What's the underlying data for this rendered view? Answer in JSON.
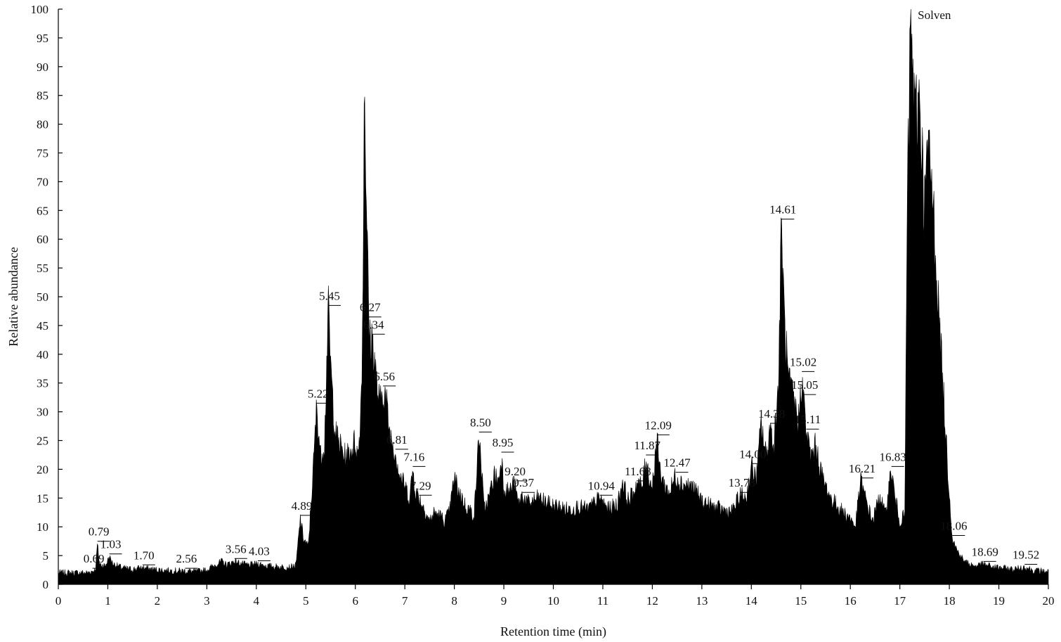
{
  "chart_data": {
    "type": "line",
    "title": "",
    "xlabel": "Retention time (min)",
    "ylabel": "Relative abundance",
    "xlim": [
      0,
      20
    ],
    "ylim": [
      0,
      100
    ],
    "x_ticks": [
      0,
      1,
      2,
      3,
      4,
      5,
      6,
      7,
      8,
      9,
      10,
      11,
      12,
      13,
      14,
      15,
      16,
      17,
      18,
      19,
      20
    ],
    "y_ticks": [
      0,
      5,
      10,
      15,
      20,
      25,
      30,
      35,
      40,
      45,
      50,
      55,
      60,
      65,
      70,
      75,
      80,
      85,
      90,
      95,
      100
    ],
    "grid": false,
    "legend": "none",
    "series_color": "#000000",
    "series": [
      {
        "points": [
          [
            0.0,
            2.0
          ],
          [
            0.3,
            2.0
          ],
          [
            0.6,
            2.0
          ],
          [
            0.69,
            2.3
          ],
          [
            0.75,
            2.5
          ],
          [
            0.79,
            7.0
          ],
          [
            0.83,
            3.5
          ],
          [
            0.95,
            3.2
          ],
          [
            1.03,
            4.8
          ],
          [
            1.1,
            3.6
          ],
          [
            1.3,
            2.8
          ],
          [
            1.5,
            2.6
          ],
          [
            1.7,
            2.9
          ],
          [
            1.9,
            2.6
          ],
          [
            2.2,
            2.4
          ],
          [
            2.56,
            2.3
          ],
          [
            2.8,
            2.2
          ],
          [
            3.0,
            2.5
          ],
          [
            3.2,
            3.5
          ],
          [
            3.3,
            4.0
          ],
          [
            3.4,
            3.4
          ],
          [
            3.56,
            4.0
          ],
          [
            3.7,
            3.6
          ],
          [
            3.85,
            3.3
          ],
          [
            4.03,
            3.6
          ],
          [
            4.2,
            3.2
          ],
          [
            4.5,
            3.0
          ],
          [
            4.7,
            3.0
          ],
          [
            4.8,
            3.3
          ],
          [
            4.89,
            11.5
          ],
          [
            4.95,
            8.0
          ],
          [
            5.05,
            6.5
          ],
          [
            5.15,
            20.0
          ],
          [
            5.22,
            31.0
          ],
          [
            5.3,
            22.0
          ],
          [
            5.38,
            25.0
          ],
          [
            5.45,
            48.0
          ],
          [
            5.52,
            35.0
          ],
          [
            5.6,
            26.0
          ],
          [
            5.7,
            24.0
          ],
          [
            5.8,
            22.0
          ],
          [
            5.9,
            23.0
          ],
          [
            6.0,
            25.0
          ],
          [
            6.05,
            22.0
          ],
          [
            6.1,
            28.0
          ],
          [
            6.15,
            45.0
          ],
          [
            6.18,
            89.0
          ],
          [
            6.22,
            70.0
          ],
          [
            6.27,
            46.0
          ],
          [
            6.3,
            42.0
          ],
          [
            6.34,
            43.0
          ],
          [
            6.4,
            38.0
          ],
          [
            6.45,
            33.0
          ],
          [
            6.5,
            31.0
          ],
          [
            6.56,
            34.0
          ],
          [
            6.62,
            32.0
          ],
          [
            6.7,
            26.0
          ],
          [
            6.81,
            23.0
          ],
          [
            6.9,
            19.0
          ],
          [
            7.0,
            17.0
          ],
          [
            7.1,
            15.0
          ],
          [
            7.16,
            20.0
          ],
          [
            7.22,
            16.0
          ],
          [
            7.29,
            15.0
          ],
          [
            7.4,
            13.0
          ],
          [
            7.5,
            11.0
          ],
          [
            7.6,
            12.5
          ],
          [
            7.7,
            12.0
          ],
          [
            7.8,
            11.0
          ],
          [
            7.9,
            12.5
          ],
          [
            8.0,
            18.5
          ],
          [
            8.1,
            16.0
          ],
          [
            8.2,
            14.0
          ],
          [
            8.3,
            13.0
          ],
          [
            8.4,
            12.0
          ],
          [
            8.5,
            26.0
          ],
          [
            8.55,
            20.0
          ],
          [
            8.6,
            13.0
          ],
          [
            8.7,
            15.0
          ],
          [
            8.8,
            19.0
          ],
          [
            8.9,
            18.0
          ],
          [
            8.95,
            22.5
          ],
          [
            9.0,
            17.0
          ],
          [
            9.1,
            16.0
          ],
          [
            9.2,
            17.5
          ],
          [
            9.3,
            14.0
          ],
          [
            9.37,
            15.5
          ],
          [
            9.5,
            14.0
          ],
          [
            9.7,
            15.0
          ],
          [
            9.9,
            14.0
          ],
          [
            10.1,
            13.5
          ],
          [
            10.3,
            13.0
          ],
          [
            10.5,
            13.5
          ],
          [
            10.7,
            13.0
          ],
          [
            10.94,
            15.0
          ],
          [
            11.1,
            13.0
          ],
          [
            11.3,
            14.0
          ],
          [
            11.4,
            18.0
          ],
          [
            11.5,
            14.5
          ],
          [
            11.6,
            15.5
          ],
          [
            11.68,
            17.5
          ],
          [
            11.8,
            17.0
          ],
          [
            11.87,
            22.0
          ],
          [
            11.95,
            18.0
          ],
          [
            12.0,
            17.0
          ],
          [
            12.09,
            25.5
          ],
          [
            12.15,
            20.0
          ],
          [
            12.25,
            17.0
          ],
          [
            12.35,
            16.0
          ],
          [
            12.47,
            19.0
          ],
          [
            12.6,
            17.5
          ],
          [
            12.8,
            17.0
          ],
          [
            13.0,
            14.5
          ],
          [
            13.2,
            13.5
          ],
          [
            13.4,
            13.0
          ],
          [
            13.6,
            12.5
          ],
          [
            13.78,
            15.5
          ],
          [
            13.9,
            15.0
          ],
          [
            14.0,
            20.5
          ],
          [
            14.1,
            18.0
          ],
          [
            14.2,
            28.0
          ],
          [
            14.3,
            22.0
          ],
          [
            14.38,
            27.5
          ],
          [
            14.45,
            24.0
          ],
          [
            14.55,
            35.0
          ],
          [
            14.61,
            63.0
          ],
          [
            14.67,
            45.0
          ],
          [
            14.75,
            35.0
          ],
          [
            14.85,
            32.0
          ],
          [
            14.95,
            28.0
          ],
          [
            15.02,
            36.5
          ],
          [
            15.05,
            32.5
          ],
          [
            15.11,
            26.5
          ],
          [
            15.2,
            22.0
          ],
          [
            15.3,
            24.0
          ],
          [
            15.45,
            18.0
          ],
          [
            15.6,
            15.0
          ],
          [
            15.8,
            13.0
          ],
          [
            16.0,
            11.5
          ],
          [
            16.1,
            10.0
          ],
          [
            16.21,
            18.0
          ],
          [
            16.3,
            15.0
          ],
          [
            16.45,
            11.0
          ],
          [
            16.6,
            15.5
          ],
          [
            16.7,
            12.0
          ],
          [
            16.83,
            20.0
          ],
          [
            16.9,
            15.0
          ],
          [
            17.0,
            11.0
          ],
          [
            17.1,
            12.0
          ],
          [
            17.15,
            65.0
          ],
          [
            17.22,
            100.0
          ],
          [
            17.3,
            80.0
          ],
          [
            17.4,
            85.0
          ],
          [
            17.5,
            65.0
          ],
          [
            17.55,
            75.0
          ],
          [
            17.62,
            72.0
          ],
          [
            17.7,
            62.0
          ],
          [
            17.8,
            45.0
          ],
          [
            17.9,
            30.0
          ],
          [
            17.97,
            20.0
          ],
          [
            18.06,
            8.0
          ],
          [
            18.15,
            6.0
          ],
          [
            18.3,
            4.0
          ],
          [
            18.5,
            3.2
          ],
          [
            18.69,
            3.5
          ],
          [
            18.9,
            3.0
          ],
          [
            19.1,
            2.8
          ],
          [
            19.3,
            2.6
          ],
          [
            19.52,
            3.0
          ],
          [
            19.7,
            2.4
          ],
          [
            20.0,
            2.2
          ]
        ]
      }
    ],
    "annotations": [
      {
        "text": "Solven",
        "x": 17.22,
        "y": 100
      },
      {
        "text": "0.69",
        "x": 0.69,
        "y": 2.3
      },
      {
        "text": "0.79",
        "x": 0.79,
        "y": 7.0
      },
      {
        "text": "1.03",
        "x": 1.03,
        "y": 4.8
      },
      {
        "text": "1.70",
        "x": 1.7,
        "y": 2.9
      },
      {
        "text": "2.56",
        "x": 2.56,
        "y": 2.3
      },
      {
        "text": "3.56",
        "x": 3.56,
        "y": 4.0
      },
      {
        "text": "4.03",
        "x": 4.03,
        "y": 3.6
      },
      {
        "text": "4.89",
        "x": 4.89,
        "y": 11.5
      },
      {
        "text": "5.22",
        "x": 5.22,
        "y": 31.0
      },
      {
        "text": "5.45",
        "x": 5.45,
        "y": 48.0
      },
      {
        "text": "6.27",
        "x": 6.27,
        "y": 46.0
      },
      {
        "text": "6.34",
        "x": 6.34,
        "y": 43.0
      },
      {
        "text": "6.56",
        "x": 6.56,
        "y": 34.0
      },
      {
        "text": "6.81",
        "x": 6.81,
        "y": 23.0
      },
      {
        "text": "7.16",
        "x": 7.16,
        "y": 20.0
      },
      {
        "text": "7.29",
        "x": 7.29,
        "y": 15.0
      },
      {
        "text": "8.50",
        "x": 8.5,
        "y": 26.0
      },
      {
        "text": "8.95",
        "x": 8.95,
        "y": 22.5
      },
      {
        "text": "9.20",
        "x": 9.2,
        "y": 17.5
      },
      {
        "text": "9.37",
        "x": 9.37,
        "y": 15.5
      },
      {
        "text": "10.94",
        "x": 10.94,
        "y": 15.0
      },
      {
        "text": "11.68",
        "x": 11.68,
        "y": 17.5
      },
      {
        "text": "11.87",
        "x": 11.87,
        "y": 22.0
      },
      {
        "text": "12.09",
        "x": 12.09,
        "y": 25.5
      },
      {
        "text": "12.47",
        "x": 12.47,
        "y": 19.0
      },
      {
        "text": "13.78",
        "x": 13.78,
        "y": 15.5
      },
      {
        "text": "14.00",
        "x": 14.0,
        "y": 20.5
      },
      {
        "text": "14.38",
        "x": 14.38,
        "y": 27.5
      },
      {
        "text": "14.61",
        "x": 14.61,
        "y": 63.0
      },
      {
        "text": "15.02",
        "x": 15.02,
        "y": 36.5
      },
      {
        "text": "15.05",
        "x": 15.05,
        "y": 32.5
      },
      {
        "text": "15.11",
        "x": 15.11,
        "y": 26.5
      },
      {
        "text": "16.21",
        "x": 16.21,
        "y": 18.0
      },
      {
        "text": "16.83",
        "x": 16.83,
        "y": 20.0
      },
      {
        "text": "18.06",
        "x": 18.06,
        "y": 8.0
      },
      {
        "text": "18.69",
        "x": 18.69,
        "y": 3.5
      },
      {
        "text": "19.52",
        "x": 19.52,
        "y": 3.0
      }
    ]
  }
}
